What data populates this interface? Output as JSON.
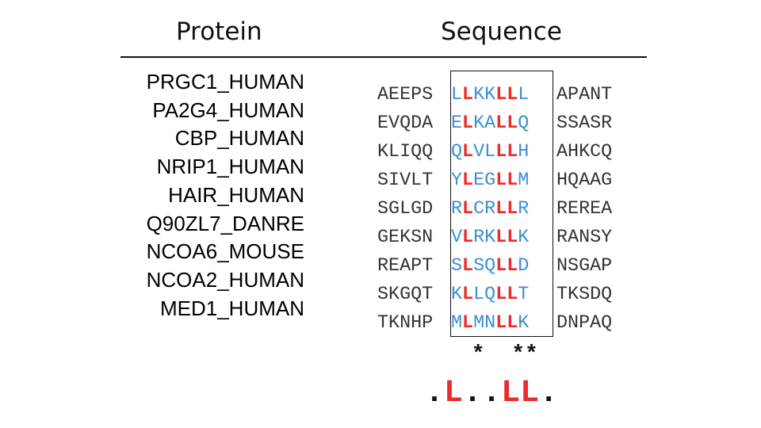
{
  "headers": {
    "protein": "Protein",
    "sequence": "Sequence"
  },
  "rows": [
    {
      "protein": "PRGC1_HUMAN",
      "pre": "AEEPS",
      "core": [
        "L",
        "L",
        "K",
        "K",
        "L",
        "L",
        "L"
      ],
      "post": "APANT"
    },
    {
      "protein": "PA2G4_HUMAN",
      "pre": "EVQDA",
      "core": [
        "E",
        "L",
        "K",
        "A",
        "L",
        "L",
        "Q"
      ],
      "post": "SSASR"
    },
    {
      "protein": "CBP_HUMAN",
      "pre": "KLIQQ",
      "core": [
        "Q",
        "L",
        "V",
        "L",
        "L",
        "L",
        "H"
      ],
      "post": "AHKCQ"
    },
    {
      "protein": "NRIP1_HUMAN",
      "pre": "SIVLT",
      "core": [
        "Y",
        "L",
        "E",
        "G",
        "L",
        "L",
        "M"
      ],
      "post": "HQAAG"
    },
    {
      "protein": "HAIR_HUMAN",
      "pre": "SGLGD",
      "core": [
        "R",
        "L",
        "C",
        "R",
        "L",
        "L",
        "R"
      ],
      "post": "REREA"
    },
    {
      "protein": "Q90ZL7_DANRE",
      "pre": "GEKSN",
      "core": [
        "V",
        "L",
        "R",
        "K",
        "L",
        "L",
        "K"
      ],
      "post": "RANSY"
    },
    {
      "protein": "NCOA6_MOUSE",
      "pre": "REAPT",
      "core": [
        "S",
        "L",
        "S",
        "Q",
        "L",
        "L",
        "D"
      ],
      "post": "NSGAP"
    },
    {
      "protein": "NCOA2_HUMAN",
      "pre": "SKGQT",
      "core": [
        "K",
        "L",
        "L",
        "Q",
        "L",
        "L",
        "T"
      ],
      "post": "TKSDQ"
    },
    {
      "protein": "MED1_HUMAN",
      "pre": "TKNHP",
      "core": [
        "M",
        "L",
        "M",
        "N",
        "L",
        "L",
        "K"
      ],
      "post": "DNPAQ"
    }
  ],
  "conserved_positions": [
    1,
    4,
    5
  ],
  "conservation_marks": " *  **",
  "consensus": [
    ".",
    "L",
    ".",
    ".",
    "L",
    "L",
    "."
  ],
  "colors": {
    "core": "#3a8ed6",
    "conserved": "#ee2b2b",
    "text": "#333333"
  }
}
